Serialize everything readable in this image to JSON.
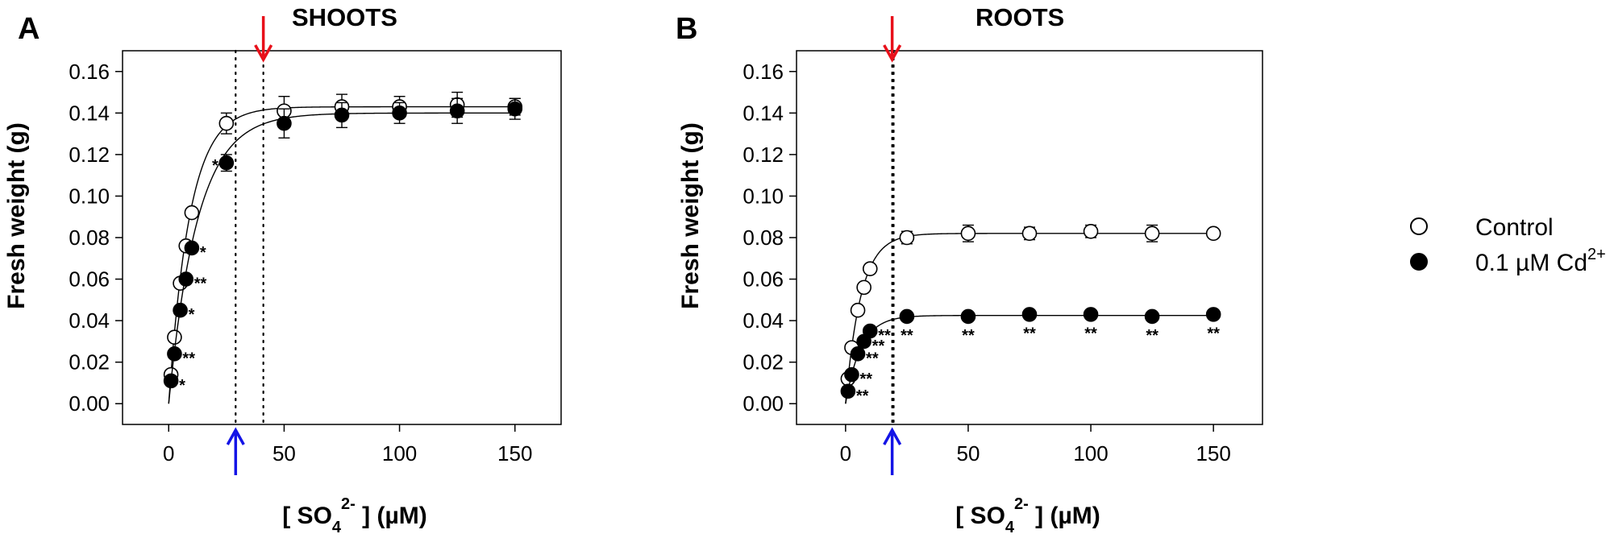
{
  "chart_data": [
    {
      "type": "scatter",
      "panel_label": "A",
      "title": "SHOOTS",
      "xlabel_parts": [
        "[ SO",
        "4",
        "2-",
        " ] (µM)"
      ],
      "ylabel": "Fresh weight (g)",
      "xlim": [
        -20,
        170
      ],
      "ylim": [
        -0.01,
        0.17
      ],
      "xticks": [
        0,
        50,
        100,
        150
      ],
      "xtick_labels": [
        "0",
        "50",
        "100",
        "150"
      ],
      "yticks": [
        0,
        0.02,
        0.04,
        0.06,
        0.08,
        0.1,
        0.12,
        0.14,
        0.16
      ],
      "ytick_labels": [
        "0.00",
        "0.02",
        "0.04",
        "0.06",
        "0.08",
        "0.10",
        "0.12",
        "0.14",
        "0.16"
      ],
      "vlines": [
        29,
        41
      ],
      "red_arrow_x": 41,
      "blue_arrow_x": 29,
      "series": [
        {
          "name": "Control",
          "marker": "open",
          "points": [
            {
              "x": 1,
              "y": 0.014,
              "err": 0.002
            },
            {
              "x": 2.5,
              "y": 0.032,
              "err": 0.002
            },
            {
              "x": 5,
              "y": 0.058,
              "err": 0.002
            },
            {
              "x": 7.5,
              "y": 0.076,
              "err": 0.002
            },
            {
              "x": 10,
              "y": 0.092,
              "err": 0.002
            },
            {
              "x": 25,
              "y": 0.135,
              "err": 0.005
            },
            {
              "x": 50,
              "y": 0.141,
              "err": 0.007
            },
            {
              "x": 75,
              "y": 0.143,
              "err": 0.006
            },
            {
              "x": 100,
              "y": 0.143,
              "err": 0.005
            },
            {
              "x": 125,
              "y": 0.144,
              "err": 0.006
            },
            {
              "x": 150,
              "y": 0.143,
              "err": 0.004
            }
          ],
          "fit": {
            "ymax": 0.143,
            "k": 0.11
          }
        },
        {
          "name": "0.1 µM Cd2+",
          "marker": "filled",
          "points": [
            {
              "x": 1,
              "y": 0.011,
              "err": 0.002,
              "sig": "*"
            },
            {
              "x": 2.5,
              "y": 0.024,
              "err": 0.002,
              "sig": "**"
            },
            {
              "x": 5,
              "y": 0.045,
              "err": 0.002,
              "sig": "*"
            },
            {
              "x": 7.5,
              "y": 0.06,
              "err": 0.002,
              "sig": "**"
            },
            {
              "x": 10,
              "y": 0.075,
              "err": 0.002,
              "sig": "*"
            },
            {
              "x": 25,
              "y": 0.116,
              "err": 0.004,
              "sig": "*"
            },
            {
              "x": 50,
              "y": 0.135,
              "err": 0.007,
              "sig": ""
            },
            {
              "x": 75,
              "y": 0.139,
              "err": 0.006,
              "sig": ""
            },
            {
              "x": 100,
              "y": 0.14,
              "err": 0.005,
              "sig": ""
            },
            {
              "x": 125,
              "y": 0.141,
              "err": 0.006,
              "sig": ""
            },
            {
              "x": 150,
              "y": 0.142,
              "err": 0.005,
              "sig": ""
            }
          ],
          "fit": {
            "ymax": 0.14,
            "k": 0.08
          }
        }
      ]
    },
    {
      "type": "scatter",
      "panel_label": "B",
      "title": "ROOTS",
      "xlabel_parts": [
        "[ SO",
        "4",
        "2-",
        " ] (µM)"
      ],
      "ylabel": "Fresh weight (g)",
      "xlim": [
        -20,
        170
      ],
      "ylim": [
        -0.01,
        0.17
      ],
      "xticks": [
        0,
        50,
        100,
        150
      ],
      "xtick_labels": [
        "0",
        "50",
        "100",
        "150"
      ],
      "yticks": [
        0,
        0.02,
        0.04,
        0.06,
        0.08,
        0.1,
        0.12,
        0.14,
        0.16
      ],
      "ytick_labels": [
        "0.00",
        "0.02",
        "0.04",
        "0.06",
        "0.08",
        "0.10",
        "0.12",
        "0.14",
        "0.16"
      ],
      "vlines": [
        19,
        19.6
      ],
      "red_arrow_x": 19,
      "blue_arrow_x": 19,
      "series": [
        {
          "name": "Control",
          "marker": "open",
          "points": [
            {
              "x": 1,
              "y": 0.012,
              "err": 0.002
            },
            {
              "x": 2.5,
              "y": 0.027,
              "err": 0.002
            },
            {
              "x": 5,
              "y": 0.045,
              "err": 0.002
            },
            {
              "x": 7.5,
              "y": 0.056,
              "err": 0.002
            },
            {
              "x": 10,
              "y": 0.065,
              "err": 0.002
            },
            {
              "x": 25,
              "y": 0.08,
              "err": 0.003
            },
            {
              "x": 50,
              "y": 0.082,
              "err": 0.004
            },
            {
              "x": 75,
              "y": 0.082,
              "err": 0.003
            },
            {
              "x": 100,
              "y": 0.083,
              "err": 0.003
            },
            {
              "x": 125,
              "y": 0.082,
              "err": 0.004
            },
            {
              "x": 150,
              "y": 0.082,
              "err": 0.002
            }
          ],
          "fit": {
            "ymax": 0.082,
            "k": 0.16
          }
        },
        {
          "name": "0.1 µM Cd2+",
          "marker": "filled",
          "points": [
            {
              "x": 1,
              "y": 0.006,
              "err": 0.001,
              "sig": "**"
            },
            {
              "x": 2.5,
              "y": 0.014,
              "err": 0.001,
              "sig": "**"
            },
            {
              "x": 5,
              "y": 0.024,
              "err": 0.001,
              "sig": "**"
            },
            {
              "x": 7.5,
              "y": 0.03,
              "err": 0.001,
              "sig": "**"
            },
            {
              "x": 10,
              "y": 0.035,
              "err": 0.001,
              "sig": "**"
            },
            {
              "x": 25,
              "y": 0.042,
              "err": 0.002,
              "sig": "**"
            },
            {
              "x": 50,
              "y": 0.042,
              "err": 0.002,
              "sig": "**"
            },
            {
              "x": 75,
              "y": 0.043,
              "err": 0.002,
              "sig": "**"
            },
            {
              "x": 100,
              "y": 0.043,
              "err": 0.002,
              "sig": "**"
            },
            {
              "x": 125,
              "y": 0.042,
              "err": 0.002,
              "sig": "**"
            },
            {
              "x": 150,
              "y": 0.043,
              "err": 0.002,
              "sig": "**"
            }
          ],
          "fit": {
            "ymax": 0.0425,
            "k": 0.16
          }
        }
      ]
    }
  ],
  "legend": {
    "items": [
      {
        "marker": "open",
        "label": "Control"
      },
      {
        "marker": "filled",
        "label_main": "0.1 µM Cd",
        "label_sup": "2+"
      }
    ]
  },
  "colors": {
    "axis": "#000000",
    "red_arrow": "#e8101a",
    "blue_arrow": "#1414e6"
  }
}
